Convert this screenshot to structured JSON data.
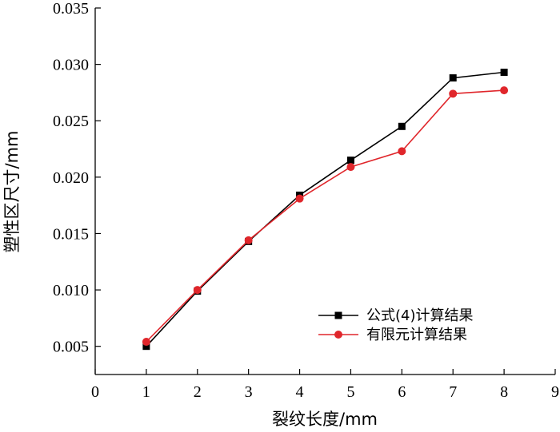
{
  "chart_data": {
    "type": "line",
    "xlabel": "裂纹长度/mm",
    "ylabel": "塑性区尺寸/mm",
    "xlim": [
      0,
      9
    ],
    "ylim": [
      0.0025,
      0.035
    ],
    "xticks": [
      0,
      1,
      2,
      3,
      4,
      5,
      6,
      7,
      8,
      9
    ],
    "xtick_labels": [
      "0",
      "1",
      "2",
      "3",
      "4",
      "5",
      "6",
      "7",
      "8",
      "9"
    ],
    "yticks": [
      0.005,
      0.01,
      0.015,
      0.02,
      0.025,
      0.03,
      0.035
    ],
    "ytick_labels": [
      "0.005",
      "0.010",
      "0.015",
      "0.020",
      "0.025",
      "0.030",
      "0.035"
    ],
    "grid": false,
    "legend_position": "bottom-right",
    "x": [
      1,
      2,
      3,
      4,
      5,
      6,
      7,
      8
    ],
    "series": [
      {
        "name": "公式(4)计算结果",
        "color": "#000000",
        "marker": "square",
        "values": [
          0.005,
          0.0099,
          0.0143,
          0.0184,
          0.0215,
          0.0245,
          0.0288,
          0.0293
        ]
      },
      {
        "name": "有限元计算结果",
        "color": "#e0262b",
        "marker": "circle",
        "values": [
          0.0054,
          0.01,
          0.0144,
          0.0181,
          0.0209,
          0.0223,
          0.0274,
          0.0277
        ]
      }
    ]
  }
}
